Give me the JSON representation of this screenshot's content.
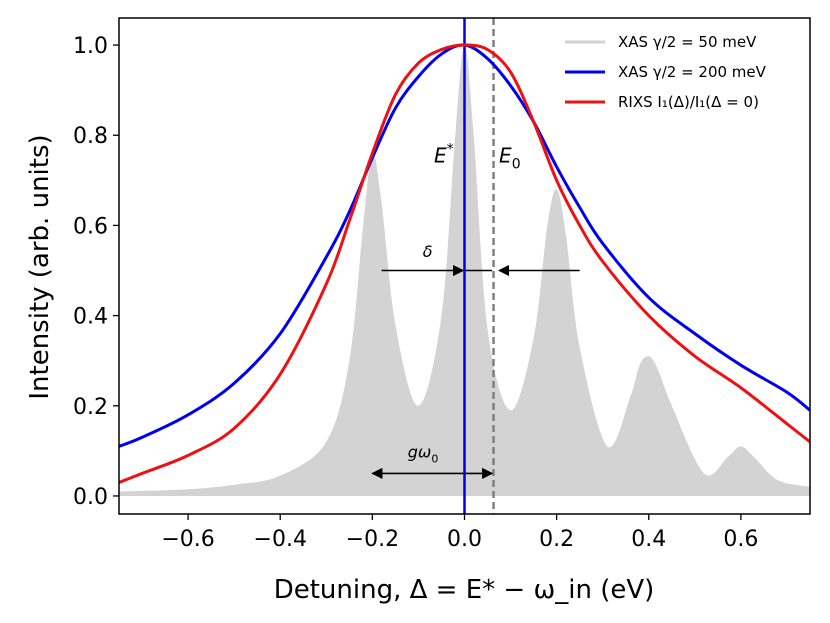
{
  "chart_data": {
    "type": "line",
    "xlabel": "Detuning,  Δ = E* − ω_in (eV)",
    "ylabel": "Intensity (arb. units)",
    "xlim": [
      -0.75,
      0.75
    ],
    "ylim": [
      -0.04,
      1.06
    ],
    "x_ticks": [
      -0.6,
      -0.4,
      -0.2,
      0.0,
      0.2,
      0.4,
      0.6
    ],
    "x_tick_labels": [
      "−0.6",
      "−0.4",
      "−0.2",
      "0.0",
      "0.2",
      "0.4",
      "0.6"
    ],
    "y_ticks": [
      0.0,
      0.2,
      0.4,
      0.6,
      0.8,
      1.0
    ],
    "y_tick_labels": [
      "0.0",
      "0.2",
      "0.4",
      "0.6",
      "0.8",
      "1.0"
    ],
    "grid": false,
    "legend_position": "top-right",
    "colors": {
      "xas_narrow": "#d3d3d3",
      "xas_broad": "#0000ee",
      "rixs": "#ee1111",
      "e_star_line": "#0000ee",
      "e0_line": "#808080"
    },
    "series": [
      {
        "name": "XAS γ/2 = 50 meV",
        "style": "filled",
        "peaks": [
          {
            "x": -0.2,
            "y": 0.76
          },
          {
            "x": 0.0,
            "y": 1.0
          },
          {
            "x": 0.2,
            "y": 0.68
          },
          {
            "x": 0.4,
            "y": 0.31
          },
          {
            "x": 0.6,
            "y": 0.11
          }
        ],
        "minima": [
          {
            "x": -0.1,
            "y": 0.2
          },
          {
            "x": 0.1,
            "y": 0.19
          },
          {
            "x": 0.31,
            "y": 0.11
          },
          {
            "x": 0.52,
            "y": 0.05
          }
        ],
        "x": [
          -0.75,
          -0.6,
          -0.5,
          -0.4,
          -0.3,
          -0.25,
          -0.22,
          -0.2,
          -0.18,
          -0.15,
          -0.1,
          -0.05,
          -0.02,
          0.0,
          0.02,
          0.05,
          0.1,
          0.15,
          0.18,
          0.2,
          0.22,
          0.25,
          0.31,
          0.36,
          0.38,
          0.4,
          0.42,
          0.45,
          0.52,
          0.57,
          0.59,
          0.6,
          0.61,
          0.63,
          0.68,
          0.75
        ],
        "y": [
          0.01,
          0.015,
          0.025,
          0.045,
          0.12,
          0.3,
          0.6,
          0.76,
          0.65,
          0.38,
          0.2,
          0.4,
          0.8,
          1.0,
          0.8,
          0.37,
          0.19,
          0.35,
          0.6,
          0.68,
          0.58,
          0.33,
          0.11,
          0.22,
          0.29,
          0.31,
          0.28,
          0.2,
          0.05,
          0.085,
          0.105,
          0.11,
          0.105,
          0.085,
          0.035,
          0.02
        ]
      },
      {
        "name": "XAS γ/2 = 200 meV",
        "x": [
          -0.75,
          -0.7,
          -0.6,
          -0.5,
          -0.4,
          -0.3,
          -0.25,
          -0.2,
          -0.15,
          -0.1,
          -0.05,
          0.0,
          0.05,
          0.1,
          0.15,
          0.2,
          0.25,
          0.3,
          0.4,
          0.5,
          0.6,
          0.7,
          0.75
        ],
        "y": [
          0.11,
          0.13,
          0.18,
          0.25,
          0.36,
          0.53,
          0.63,
          0.75,
          0.86,
          0.93,
          0.98,
          1.0,
          0.97,
          0.91,
          0.83,
          0.73,
          0.64,
          0.56,
          0.44,
          0.36,
          0.29,
          0.23,
          0.19
        ]
      },
      {
        "name": "RIXS I₁(Δ)/I₁(Δ = 0)",
        "x": [
          -0.75,
          -0.7,
          -0.6,
          -0.5,
          -0.4,
          -0.3,
          -0.25,
          -0.2,
          -0.15,
          -0.1,
          -0.05,
          0.0,
          0.05,
          0.1,
          0.15,
          0.2,
          0.25,
          0.3,
          0.4,
          0.5,
          0.6,
          0.7,
          0.75
        ],
        "y": [
          0.03,
          0.05,
          0.09,
          0.15,
          0.27,
          0.47,
          0.61,
          0.76,
          0.89,
          0.96,
          0.99,
          1.0,
          0.99,
          0.94,
          0.83,
          0.7,
          0.6,
          0.52,
          0.4,
          0.31,
          0.24,
          0.16,
          0.12
        ]
      }
    ],
    "vertical_lines": [
      {
        "x": 0.0,
        "name": "E*",
        "style": "solid"
      },
      {
        "x": 0.063,
        "name": "E₀",
        "style": "dashed"
      }
    ],
    "annotations": {
      "e_star": {
        "text": "E",
        "sup": "*",
        "x": -0.045,
        "y": 0.74
      },
      "e0": {
        "text": "E",
        "sub": "0",
        "x": 0.075,
        "y": 0.74
      },
      "delta": {
        "text": "δ",
        "x": -0.08,
        "y": 0.53,
        "arrow_y": 0.5,
        "left_from": -0.18,
        "left_to": -0.003,
        "right_from": 0.25,
        "right_to": 0.075,
        "bridge_from": 0.002,
        "bridge_to": 0.06
      },
      "g_omega": {
        "text": "g",
        "symbol": "ω",
        "sub": "0",
        "x": -0.09,
        "y": 0.085,
        "arrow_y": 0.05,
        "from": -0.2,
        "to": 0.06
      }
    }
  }
}
